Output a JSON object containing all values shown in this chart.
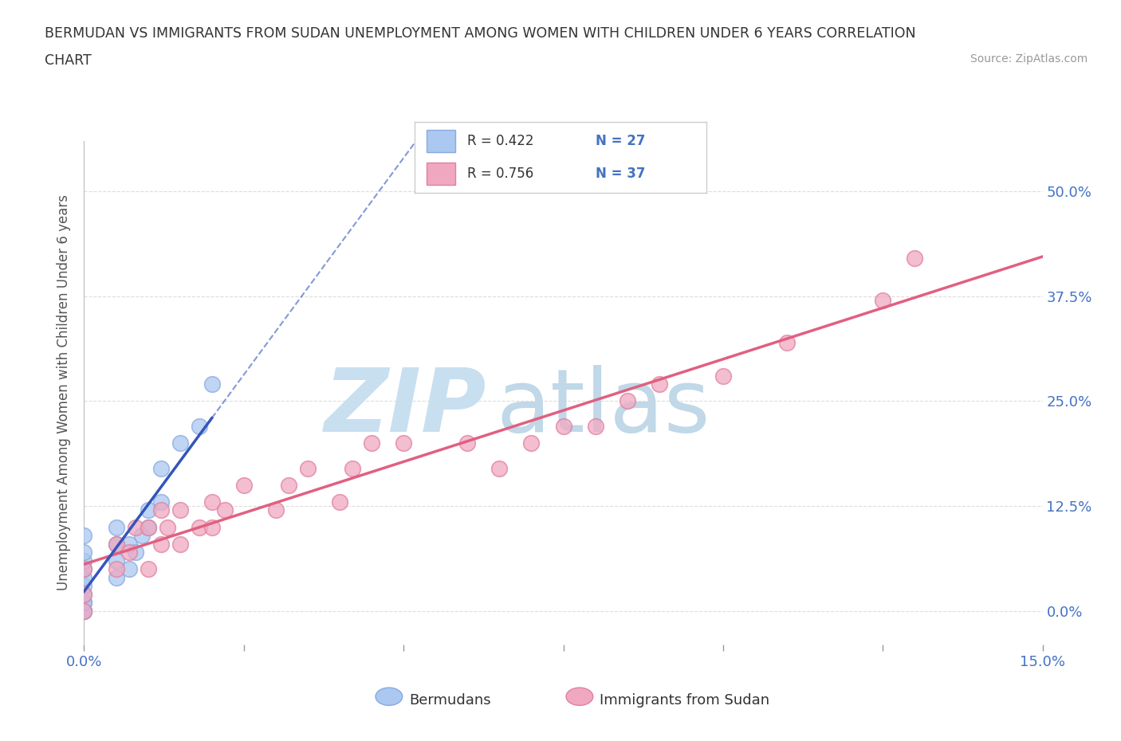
{
  "title_line1": "BERMUDAN VS IMMIGRANTS FROM SUDAN UNEMPLOYMENT AMONG WOMEN WITH CHILDREN UNDER 6 YEARS CORRELATION",
  "title_line2": "CHART",
  "source": "Source: ZipAtlas.com",
  "ylabel": "Unemployment Among Women with Children Under 6 years",
  "xlim": [
    0.0,
    0.15
  ],
  "ylim": [
    -0.04,
    0.56
  ],
  "yticks": [
    0.0,
    0.125,
    0.25,
    0.375,
    0.5
  ],
  "yticklabels": [
    "0.0%",
    "12.5%",
    "25.0%",
    "37.5%",
    "50.0%"
  ],
  "xtick_vals": [
    0.0,
    0.025,
    0.05,
    0.075,
    0.1,
    0.125,
    0.15
  ],
  "grid_color": "#dddddd",
  "background_color": "#ffffff",
  "bermudans_color": "#aac8f0",
  "bermudans_edge": "#88aae0",
  "sudan_color": "#f0a8c0",
  "sudan_edge": "#e080a0",
  "bermudans_R": 0.422,
  "bermudans_N": 27,
  "sudan_R": 0.756,
  "sudan_N": 37,
  "trend_blue_color": "#3355bb",
  "trend_pink_color": "#e06080",
  "watermark_zip_color": "#c8dff0",
  "watermark_atlas_color": "#c0d8e8",
  "legend_label1": "Bermudans",
  "legend_label2": "Immigrants from Sudan",
  "bermudans_x": [
    0.0,
    0.0,
    0.0,
    0.0,
    0.0,
    0.0,
    0.0,
    0.0,
    0.0,
    0.0,
    0.0,
    0.0,
    0.005,
    0.005,
    0.005,
    0.005,
    0.007,
    0.007,
    0.008,
    0.009,
    0.01,
    0.01,
    0.012,
    0.012,
    0.015,
    0.018,
    0.02
  ],
  "bermudans_y": [
    0.0,
    0.0,
    0.0,
    0.01,
    0.01,
    0.02,
    0.03,
    0.04,
    0.05,
    0.06,
    0.07,
    0.09,
    0.04,
    0.06,
    0.08,
    0.1,
    0.05,
    0.08,
    0.07,
    0.09,
    0.1,
    0.12,
    0.13,
    0.17,
    0.2,
    0.22,
    0.27
  ],
  "sudan_x": [
    0.0,
    0.0,
    0.0,
    0.005,
    0.005,
    0.007,
    0.008,
    0.01,
    0.01,
    0.012,
    0.012,
    0.013,
    0.015,
    0.015,
    0.018,
    0.02,
    0.02,
    0.022,
    0.025,
    0.03,
    0.032,
    0.035,
    0.04,
    0.042,
    0.045,
    0.05,
    0.06,
    0.065,
    0.07,
    0.075,
    0.08,
    0.085,
    0.09,
    0.1,
    0.11,
    0.125,
    0.13
  ],
  "sudan_y": [
    0.0,
    0.02,
    0.05,
    0.05,
    0.08,
    0.07,
    0.1,
    0.05,
    0.1,
    0.08,
    0.12,
    0.1,
    0.08,
    0.12,
    0.1,
    0.1,
    0.13,
    0.12,
    0.15,
    0.12,
    0.15,
    0.17,
    0.13,
    0.17,
    0.2,
    0.2,
    0.2,
    0.17,
    0.2,
    0.22,
    0.22,
    0.25,
    0.27,
    0.28,
    0.32,
    0.37,
    0.42
  ]
}
